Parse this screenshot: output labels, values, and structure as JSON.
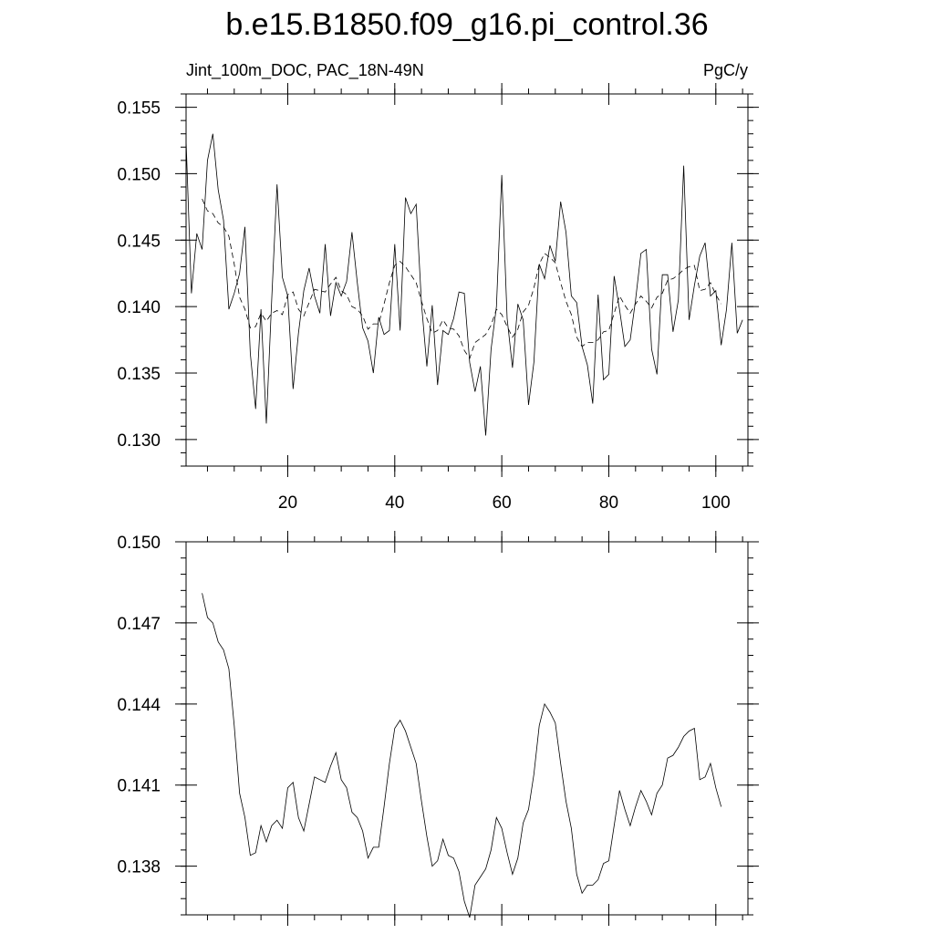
{
  "chart_data": [
    {
      "type": "line",
      "title": "b.e15.B1850.f09_g16.pi_control.36",
      "left_label": "Jint_100m_DOC, PAC_18N-49N",
      "right_label": "PgC/y",
      "xlim": [
        1,
        106
      ],
      "ylim": [
        0.128,
        0.156
      ],
      "xticks": [
        20,
        40,
        60,
        80,
        100
      ],
      "xtick_labels": [
        "20",
        "40",
        "60",
        "80",
        "100"
      ],
      "xminor_step": 5,
      "yticks": [
        0.13,
        0.135,
        0.14,
        0.145,
        0.15,
        0.155
      ],
      "ytick_labels": [
        "0.130",
        "0.135",
        "0.140",
        "0.145",
        "0.150",
        "0.155"
      ],
      "yminor_step": 0.001,
      "series": [
        {
          "style": "solid",
          "x_start": 1,
          "values": [
            0.1525,
            0.141,
            0.1455,
            0.1443,
            0.151,
            0.153,
            0.1488,
            0.1465,
            0.1398,
            0.141,
            0.1425,
            0.146,
            0.1365,
            0.1323,
            0.1398,
            0.1312,
            0.1405,
            0.1492,
            0.1422,
            0.1408,
            0.1338,
            0.138,
            0.1412,
            0.1429,
            0.1408,
            0.1395,
            0.1447,
            0.1393,
            0.1418,
            0.1408,
            0.1419,
            0.1456,
            0.1418,
            0.1384,
            0.1374,
            0.135,
            0.1392,
            0.1379,
            0.1382,
            0.1447,
            0.1382,
            0.1482,
            0.147,
            0.1477,
            0.1402,
            0.1355,
            0.1401,
            0.1341,
            0.1382,
            0.1379,
            0.1391,
            0.1411,
            0.141,
            0.1358,
            0.1336,
            0.1355,
            0.1303,
            0.1368,
            0.14,
            0.1499,
            0.1391,
            0.1354,
            0.1402,
            0.139,
            0.1326,
            0.1358,
            0.1432,
            0.1421,
            0.1446,
            0.1434,
            0.1479,
            0.1456,
            0.1408,
            0.1403,
            0.137,
            0.1356,
            0.1327,
            0.1409,
            0.1345,
            0.1349,
            0.1423,
            0.1398,
            0.137,
            0.1375,
            0.1405,
            0.144,
            0.1443,
            0.1368,
            0.1349,
            0.1424,
            0.1424,
            0.1381,
            0.1405,
            0.1506,
            0.139,
            0.1416,
            0.1438,
            0.1448,
            0.1408,
            0.1412,
            0.1371,
            0.1398,
            0.1448,
            0.138,
            0.139
          ]
        },
        {
          "style": "dashed",
          "x_start": 4,
          "values": [
            0.1481,
            0.1472,
            0.147,
            0.1463,
            0.146,
            0.1453,
            0.1432,
            0.1407,
            0.1398,
            0.1384,
            0.1385,
            0.1395,
            0.1389,
            0.1395,
            0.1397,
            0.1394,
            0.1409,
            0.1411,
            0.1398,
            0.1393,
            0.1403,
            0.1413,
            0.1412,
            0.1411,
            0.1417,
            0.1422,
            0.1412,
            0.1409,
            0.14,
            0.1398,
            0.1393,
            0.1383,
            0.1387,
            0.1387,
            0.1402,
            0.1418,
            0.1431,
            0.1434,
            0.143,
            0.1424,
            0.1418,
            0.1404,
            0.1391,
            0.138,
            0.1382,
            0.139,
            0.1384,
            0.1383,
            0.1378,
            0.1367,
            0.1361,
            0.1373,
            0.1376,
            0.1379,
            0.1386,
            0.1398,
            0.1394,
            0.1385,
            0.1377,
            0.1383,
            0.1396,
            0.1401,
            0.1414,
            0.1432,
            0.144,
            0.1437,
            0.1433,
            0.1418,
            0.1404,
            0.1394,
            0.1377,
            0.137,
            0.1373,
            0.1373,
            0.1375,
            0.1381,
            0.1382,
            0.1395,
            0.1408,
            0.1401,
            0.1395,
            0.1402,
            0.1408,
            0.1404,
            0.1399,
            0.1407,
            0.141,
            0.142,
            0.1421,
            0.1424,
            0.1428,
            0.143,
            0.1431,
            0.1412,
            0.1413,
            0.1418,
            0.1409,
            0.1402
          ]
        }
      ]
    },
    {
      "type": "line",
      "title": "",
      "xlim": [
        1,
        106
      ],
      "ylim": [
        0.1362,
        0.15
      ],
      "xticks": [
        20,
        40,
        60,
        80,
        100
      ],
      "xtick_labels": [],
      "xminor_step": 5,
      "yticks": [
        0.138,
        0.141,
        0.144,
        0.147,
        0.15
      ],
      "ytick_labels": [
        "0.138",
        "0.141",
        "0.144",
        "0.147",
        "0.150"
      ],
      "yminor_step": 0.0006,
      "series": [
        {
          "style": "solid",
          "x_start": 4,
          "values": [
            0.1481,
            0.1472,
            0.147,
            0.1463,
            0.146,
            0.1453,
            0.1432,
            0.1407,
            0.1398,
            0.1384,
            0.1385,
            0.1395,
            0.1389,
            0.1395,
            0.1397,
            0.1394,
            0.1409,
            0.1411,
            0.1398,
            0.1393,
            0.1403,
            0.1413,
            0.1412,
            0.1411,
            0.1417,
            0.1422,
            0.1412,
            0.1409,
            0.14,
            0.1398,
            0.1393,
            0.1383,
            0.1387,
            0.1387,
            0.1402,
            0.1418,
            0.1431,
            0.1434,
            0.143,
            0.1424,
            0.1418,
            0.1404,
            0.1391,
            0.138,
            0.1382,
            0.139,
            0.1384,
            0.1383,
            0.1378,
            0.1367,
            0.1361,
            0.1373,
            0.1376,
            0.1379,
            0.1386,
            0.1398,
            0.1394,
            0.1385,
            0.1377,
            0.1383,
            0.1396,
            0.1401,
            0.1414,
            0.1432,
            0.144,
            0.1437,
            0.1433,
            0.1418,
            0.1404,
            0.1394,
            0.1377,
            0.137,
            0.1373,
            0.1373,
            0.1375,
            0.1381,
            0.1382,
            0.1395,
            0.1408,
            0.1401,
            0.1395,
            0.1402,
            0.1408,
            0.1404,
            0.1399,
            0.1407,
            0.141,
            0.142,
            0.1421,
            0.1424,
            0.1428,
            0.143,
            0.1431,
            0.1412,
            0.1413,
            0.1418,
            0.1409,
            0.1402
          ]
        }
      ]
    }
  ]
}
